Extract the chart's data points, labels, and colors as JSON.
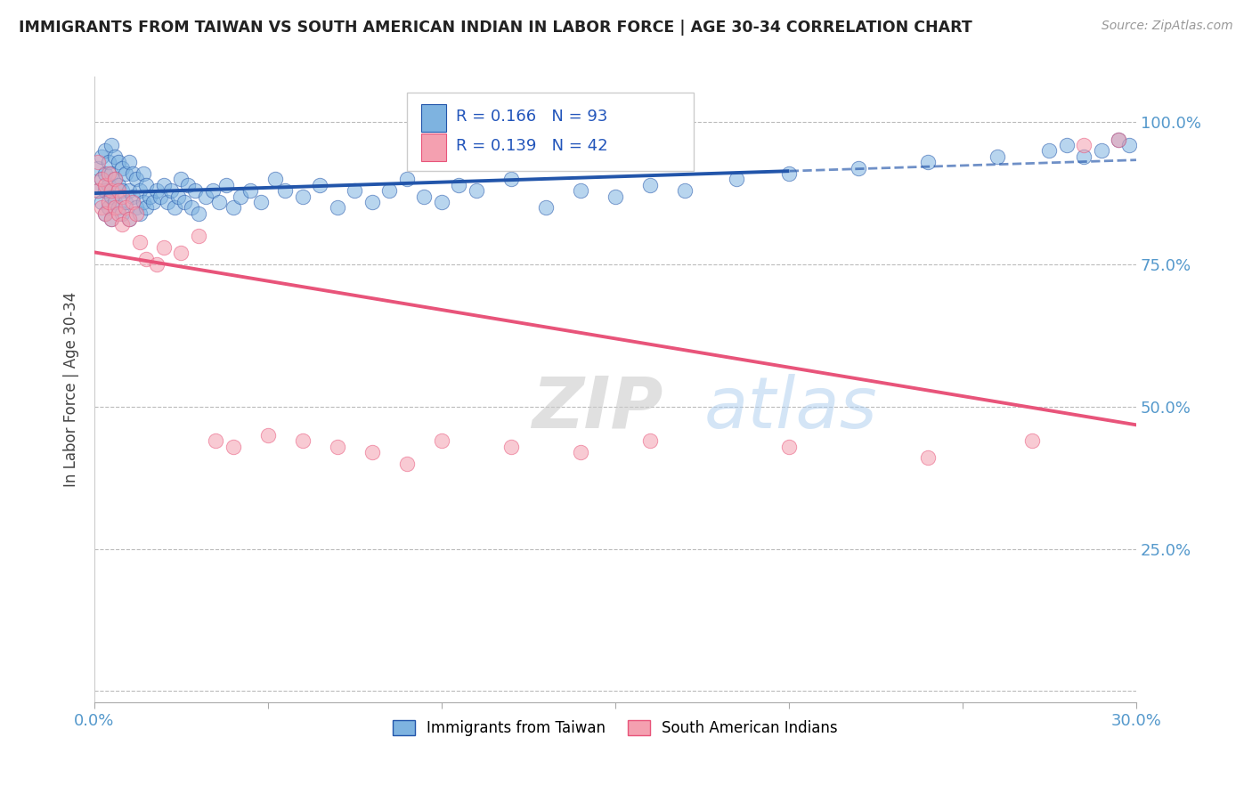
{
  "title": "IMMIGRANTS FROM TAIWAN VS SOUTH AMERICAN INDIAN IN LABOR FORCE | AGE 30-34 CORRELATION CHART",
  "source": "Source: ZipAtlas.com",
  "ylabel": "In Labor Force | Age 30-34",
  "xlim": [
    0.0,
    0.3
  ],
  "ylim": [
    -0.02,
    1.08
  ],
  "blue_R": 0.166,
  "blue_N": 93,
  "pink_R": 0.139,
  "pink_N": 42,
  "blue_color": "#7EB3E0",
  "pink_color": "#F4A0B0",
  "blue_line_color": "#2255AA",
  "pink_line_color": "#E8547A",
  "legend_label_blue": "Immigrants from Taiwan",
  "legend_label_pink": "South American Indians",
  "blue_scatter_x": [
    0.001,
    0.001,
    0.002,
    0.002,
    0.002,
    0.003,
    0.003,
    0.003,
    0.003,
    0.004,
    0.004,
    0.004,
    0.005,
    0.005,
    0.005,
    0.005,
    0.006,
    0.006,
    0.006,
    0.007,
    0.007,
    0.007,
    0.008,
    0.008,
    0.008,
    0.009,
    0.009,
    0.01,
    0.01,
    0.01,
    0.011,
    0.011,
    0.012,
    0.012,
    0.013,
    0.013,
    0.014,
    0.014,
    0.015,
    0.015,
    0.016,
    0.017,
    0.018,
    0.019,
    0.02,
    0.021,
    0.022,
    0.023,
    0.024,
    0.025,
    0.026,
    0.027,
    0.028,
    0.029,
    0.03,
    0.032,
    0.034,
    0.036,
    0.038,
    0.04,
    0.042,
    0.045,
    0.048,
    0.052,
    0.055,
    0.06,
    0.065,
    0.07,
    0.075,
    0.08,
    0.085,
    0.09,
    0.095,
    0.1,
    0.105,
    0.11,
    0.12,
    0.13,
    0.14,
    0.15,
    0.16,
    0.17,
    0.185,
    0.2,
    0.22,
    0.24,
    0.26,
    0.28,
    0.29,
    0.295,
    0.298,
    0.285,
    0.275
  ],
  "blue_scatter_y": [
    0.88,
    0.92,
    0.86,
    0.9,
    0.94,
    0.84,
    0.88,
    0.91,
    0.95,
    0.85,
    0.89,
    0.93,
    0.83,
    0.87,
    0.91,
    0.96,
    0.86,
    0.9,
    0.94,
    0.85,
    0.89,
    0.93,
    0.84,
    0.88,
    0.92,
    0.86,
    0.91,
    0.83,
    0.88,
    0.93,
    0.87,
    0.91,
    0.85,
    0.9,
    0.84,
    0.88,
    0.86,
    0.91,
    0.85,
    0.89,
    0.87,
    0.86,
    0.88,
    0.87,
    0.89,
    0.86,
    0.88,
    0.85,
    0.87,
    0.9,
    0.86,
    0.89,
    0.85,
    0.88,
    0.84,
    0.87,
    0.88,
    0.86,
    0.89,
    0.85,
    0.87,
    0.88,
    0.86,
    0.9,
    0.88,
    0.87,
    0.89,
    0.85,
    0.88,
    0.86,
    0.88,
    0.9,
    0.87,
    0.86,
    0.89,
    0.88,
    0.9,
    0.85,
    0.88,
    0.87,
    0.89,
    0.88,
    0.9,
    0.91,
    0.92,
    0.93,
    0.94,
    0.96,
    0.95,
    0.97,
    0.96,
    0.94,
    0.95
  ],
  "pink_scatter_x": [
    0.001,
    0.001,
    0.002,
    0.002,
    0.003,
    0.003,
    0.004,
    0.004,
    0.005,
    0.005,
    0.006,
    0.006,
    0.007,
    0.007,
    0.008,
    0.008,
    0.009,
    0.01,
    0.011,
    0.012,
    0.013,
    0.015,
    0.018,
    0.02,
    0.025,
    0.03,
    0.035,
    0.04,
    0.05,
    0.06,
    0.07,
    0.08,
    0.09,
    0.1,
    0.12,
    0.14,
    0.16,
    0.2,
    0.24,
    0.27,
    0.285,
    0.295
  ],
  "pink_scatter_y": [
    0.88,
    0.93,
    0.85,
    0.9,
    0.84,
    0.89,
    0.86,
    0.91,
    0.83,
    0.88,
    0.85,
    0.9,
    0.84,
    0.88,
    0.82,
    0.87,
    0.85,
    0.83,
    0.86,
    0.84,
    0.79,
    0.76,
    0.75,
    0.78,
    0.77,
    0.8,
    0.44,
    0.43,
    0.45,
    0.44,
    0.43,
    0.42,
    0.4,
    0.44,
    0.43,
    0.42,
    0.44,
    0.43,
    0.41,
    0.44,
    0.96,
    0.97
  ]
}
